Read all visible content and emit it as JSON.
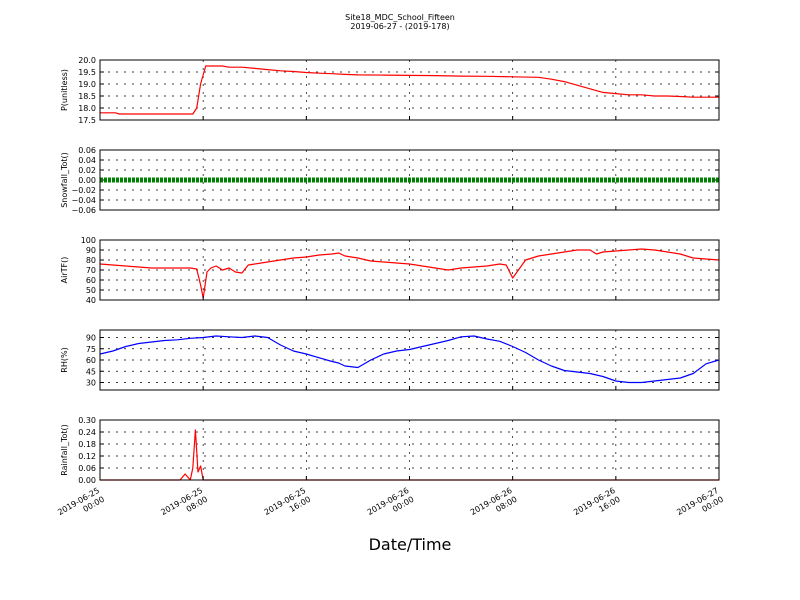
{
  "figure": {
    "title_line1": "Site18_MDC_School_Fifteen",
    "title_line2": "2019-06-27 - (2019-178)",
    "xlabel": "Date/Time"
  },
  "chart_data": {
    "type": "line",
    "x_ticks": [
      [
        "2019-06-25",
        "00:00"
      ],
      [
        "2019-06-25",
        "08:00"
      ],
      [
        "2019-06-25",
        "16:00"
      ],
      [
        "2019-06-26",
        "00:00"
      ],
      [
        "2019-06-26",
        "08:00"
      ],
      [
        "2019-06-26",
        "16:00"
      ],
      [
        "2019-06-27",
        "00:00"
      ]
    ],
    "x_range_hours": [
      0,
      48
    ],
    "panels": [
      {
        "ylabel": "P(unitless)",
        "ylim": [
          17.5,
          20.0
        ],
        "yticks": [
          "17.5",
          "18.0",
          "18.5",
          "19.0",
          "19.5",
          "20.0"
        ],
        "color": "#ff0000",
        "style": "line",
        "x": [
          0,
          1.2,
          1.5,
          7.2,
          7.5,
          7.8,
          8.2,
          9.5,
          10,
          11,
          12,
          13,
          14,
          15,
          16,
          17,
          18,
          19,
          20,
          22,
          24,
          26,
          28,
          30,
          32,
          34,
          35,
          36,
          37,
          38,
          39,
          40,
          41,
          42,
          43,
          44,
          45,
          46,
          47,
          48
        ],
        "y": [
          17.8,
          17.8,
          17.75,
          17.75,
          18.0,
          19.0,
          19.75,
          19.75,
          19.7,
          19.7,
          19.65,
          19.6,
          19.55,
          19.52,
          19.48,
          19.45,
          19.43,
          19.4,
          19.38,
          19.37,
          19.36,
          19.35,
          19.33,
          19.32,
          19.3,
          19.28,
          19.2,
          19.1,
          18.95,
          18.8,
          18.65,
          18.6,
          18.55,
          18.55,
          18.5,
          18.5,
          18.48,
          18.45,
          18.45,
          18.45
        ]
      },
      {
        "ylabel": "Snowfall_Tot()",
        "ylim": [
          -0.06,
          0.06
        ],
        "yticks": [
          "−0.06",
          "−0.04",
          "−0.02",
          "0.00",
          "0.02",
          "0.04",
          "0.06"
        ],
        "color": "#008000",
        "style": "markers",
        "x": [
          0,
          48
        ],
        "y": [
          0.0,
          0.0
        ]
      },
      {
        "ylabel": "AirTF()",
        "ylim": [
          40,
          100
        ],
        "yticks": [
          "40",
          "50",
          "60",
          "70",
          "80",
          "90",
          "100"
        ],
        "color": "#ff0000",
        "style": "line",
        "x": [
          0,
          1,
          2,
          3,
          4,
          5,
          6,
          7,
          7.5,
          7.8,
          8.0,
          8.3,
          8.6,
          9,
          9.5,
          10,
          10.5,
          11,
          11.5,
          12,
          13,
          14,
          15,
          16,
          17,
          18,
          18.5,
          19,
          20,
          21,
          22,
          23,
          24,
          25,
          26,
          27,
          28,
          29,
          30,
          31,
          31.5,
          32,
          33,
          34,
          35,
          36,
          37,
          38,
          38.5,
          39,
          40,
          41,
          42,
          43,
          44,
          45,
          46,
          47,
          48
        ],
        "y": [
          76,
          75,
          74,
          73,
          72,
          72,
          72,
          72,
          71,
          55,
          42,
          68,
          72,
          74,
          70,
          72,
          68,
          67,
          75,
          76,
          78,
          80,
          82,
          83,
          85,
          86,
          87,
          84,
          82,
          79,
          78,
          77,
          76,
          74,
          72,
          70,
          72,
          73,
          74,
          76,
          75,
          62,
          80,
          84,
          86,
          88,
          90,
          90,
          86,
          88,
          89,
          90,
          91,
          90,
          88,
          86,
          82,
          81,
          80
        ]
      },
      {
        "ylabel": "RH(%)",
        "ylim": [
          20,
          100
        ],
        "yticks": [
          "30",
          "45",
          "60",
          "75",
          "90"
        ],
        "color": "#0000ff",
        "style": "line",
        "x": [
          0,
          1,
          2,
          3,
          4,
          5,
          6,
          7,
          8,
          9,
          10,
          11,
          12,
          13,
          14,
          15,
          16,
          17,
          18,
          18.5,
          19,
          20,
          21,
          22,
          23,
          24,
          25,
          26,
          27,
          28,
          29,
          30,
          31,
          32,
          33,
          34,
          35,
          36,
          37,
          38,
          39,
          40,
          41,
          42,
          43,
          44,
          45,
          46,
          47,
          48
        ],
        "y": [
          68,
          72,
          78,
          82,
          84,
          86,
          87,
          89,
          90,
          92,
          91,
          90,
          92,
          90,
          80,
          72,
          68,
          63,
          58,
          56,
          52,
          50,
          60,
          68,
          72,
          74,
          78,
          82,
          86,
          91,
          92,
          88,
          85,
          78,
          70,
          60,
          52,
          46,
          44,
          42,
          38,
          32,
          30,
          30,
          32,
          34,
          36,
          42,
          55,
          60
        ]
      },
      {
        "ylabel": "Rainfall_Tot()",
        "ylim": [
          0.0,
          0.3
        ],
        "yticks": [
          "0.00",
          "0.06",
          "0.12",
          "0.18",
          "0.24",
          "0.30"
        ],
        "color": "#ff0000",
        "style": "line",
        "x": [
          0,
          6.2,
          6.6,
          7.0,
          7.2,
          7.4,
          7.6,
          7.8,
          8.0,
          8.2,
          48
        ],
        "y": [
          0,
          0,
          0.03,
          0.0,
          0.06,
          0.25,
          0.04,
          0.07,
          0.0,
          0.0,
          0.0
        ]
      }
    ]
  }
}
